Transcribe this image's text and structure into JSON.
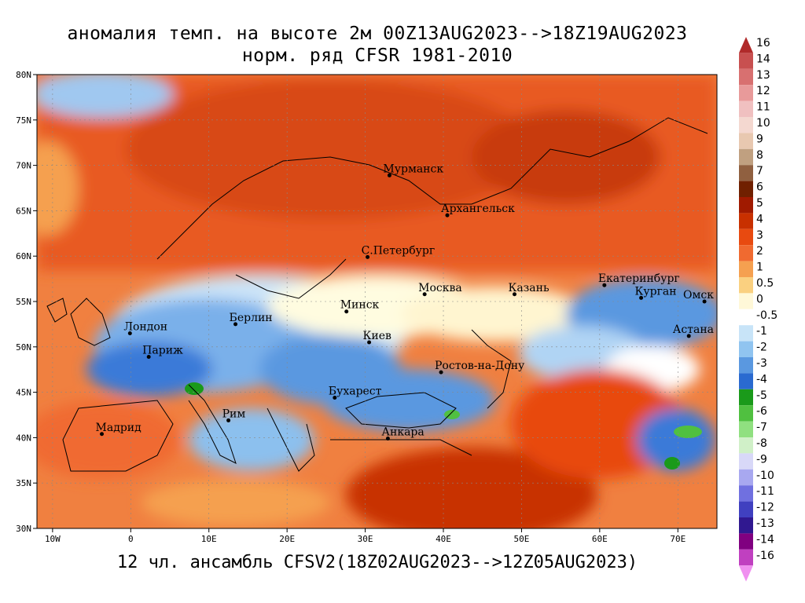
{
  "title_line1": "аномалия темп. на высоте 2м 00Z13AUG2023-->18Z19AUG2023",
  "title_line2": "норм. ряд CFSR 1981-2010",
  "subtitle": "12 чл. ансамбль CFSV2(18Z02AUG2023-->12Z05AUG2023)",
  "map": {
    "lon_range": [
      -12,
      75
    ],
    "lat_range": [
      30,
      80
    ],
    "lat_labels": [
      "80N",
      "75N",
      "70N",
      "65N",
      "60N",
      "55N",
      "50N",
      "45N",
      "40N",
      "35N",
      "30N"
    ],
    "lat_values": [
      80,
      75,
      70,
      65,
      60,
      55,
      50,
      45,
      40,
      35,
      30
    ],
    "lon_labels": [
      "10W",
      "0",
      "10E",
      "20E",
      "30E",
      "40E",
      "50E",
      "60E",
      "70E"
    ],
    "lon_values": [
      -10,
      0,
      10,
      20,
      30,
      40,
      50,
      60,
      70
    ],
    "cities": [
      {
        "name": "Мурманск",
        "lon": 33.1,
        "lat": 68.9
      },
      {
        "name": "Архангельск",
        "lon": 40.5,
        "lat": 64.5
      },
      {
        "name": "С.Петербург",
        "lon": 30.3,
        "lat": 59.9
      },
      {
        "name": "Москва",
        "lon": 37.6,
        "lat": 55.8
      },
      {
        "name": "Казань",
        "lon": 49.1,
        "lat": 55.8
      },
      {
        "name": "Екатеринбург",
        "lon": 60.6,
        "lat": 56.8
      },
      {
        "name": "Курган",
        "lon": 65.3,
        "lat": 55.4
      },
      {
        "name": "Омск",
        "lon": 73.4,
        "lat": 55.0
      },
      {
        "name": "Астана",
        "lon": 71.4,
        "lat": 51.2
      },
      {
        "name": "Минск",
        "lon": 27.6,
        "lat": 53.9
      },
      {
        "name": "Берлин",
        "lon": 13.4,
        "lat": 52.5
      },
      {
        "name": "Лондон",
        "lon": -0.1,
        "lat": 51.5
      },
      {
        "name": "Париж",
        "lon": 2.3,
        "lat": 48.9
      },
      {
        "name": "Киев",
        "lon": 30.5,
        "lat": 50.5
      },
      {
        "name": "Ростов-на-Дону",
        "lon": 39.7,
        "lat": 47.2
      },
      {
        "name": "Бухарест",
        "lon": 26.1,
        "lat": 44.4
      },
      {
        "name": "Рим",
        "lon": 12.5,
        "lat": 41.9
      },
      {
        "name": "Мадрид",
        "lon": -3.7,
        "lat": 40.4
      },
      {
        "name": "Анкара",
        "lon": 32.9,
        "lat": 39.9
      }
    ]
  },
  "colorbar": {
    "labels": [
      "16",
      "14",
      "13",
      "12",
      "11",
      "10",
      "9",
      "8",
      "7",
      "6",
      "5",
      "4",
      "3",
      "2",
      "1",
      "0.5",
      "0",
      "-0.5",
      "-1",
      "-2",
      "-3",
      "-4",
      "-5",
      "-6",
      "-7",
      "-8",
      "-9",
      "-10",
      "-11",
      "-12",
      "-13",
      "-14",
      "-16"
    ],
    "colors": [
      "#b02a2a",
      "#c85050",
      "#d87070",
      "#e89a9a",
      "#f0c0c0",
      "#f4d8d0",
      "#e8c8b0",
      "#c0a080",
      "#906040",
      "#702000",
      "#a01a00",
      "#c83000",
      "#e84a10",
      "#f06a30",
      "#f5a050",
      "#fad080",
      "#fff8d8",
      "#ffffff",
      "#c8e4f8",
      "#90c4f0",
      "#5a98e0",
      "#2a6ad0",
      "#1a9a1a",
      "#50c040",
      "#90e080",
      "#d0f0c8",
      "#d8d8f8",
      "#a8a8f0",
      "#7070e0",
      "#4040c0",
      "#301890",
      "#800080",
      "#c040c0",
      "#f090f0"
    ]
  }
}
